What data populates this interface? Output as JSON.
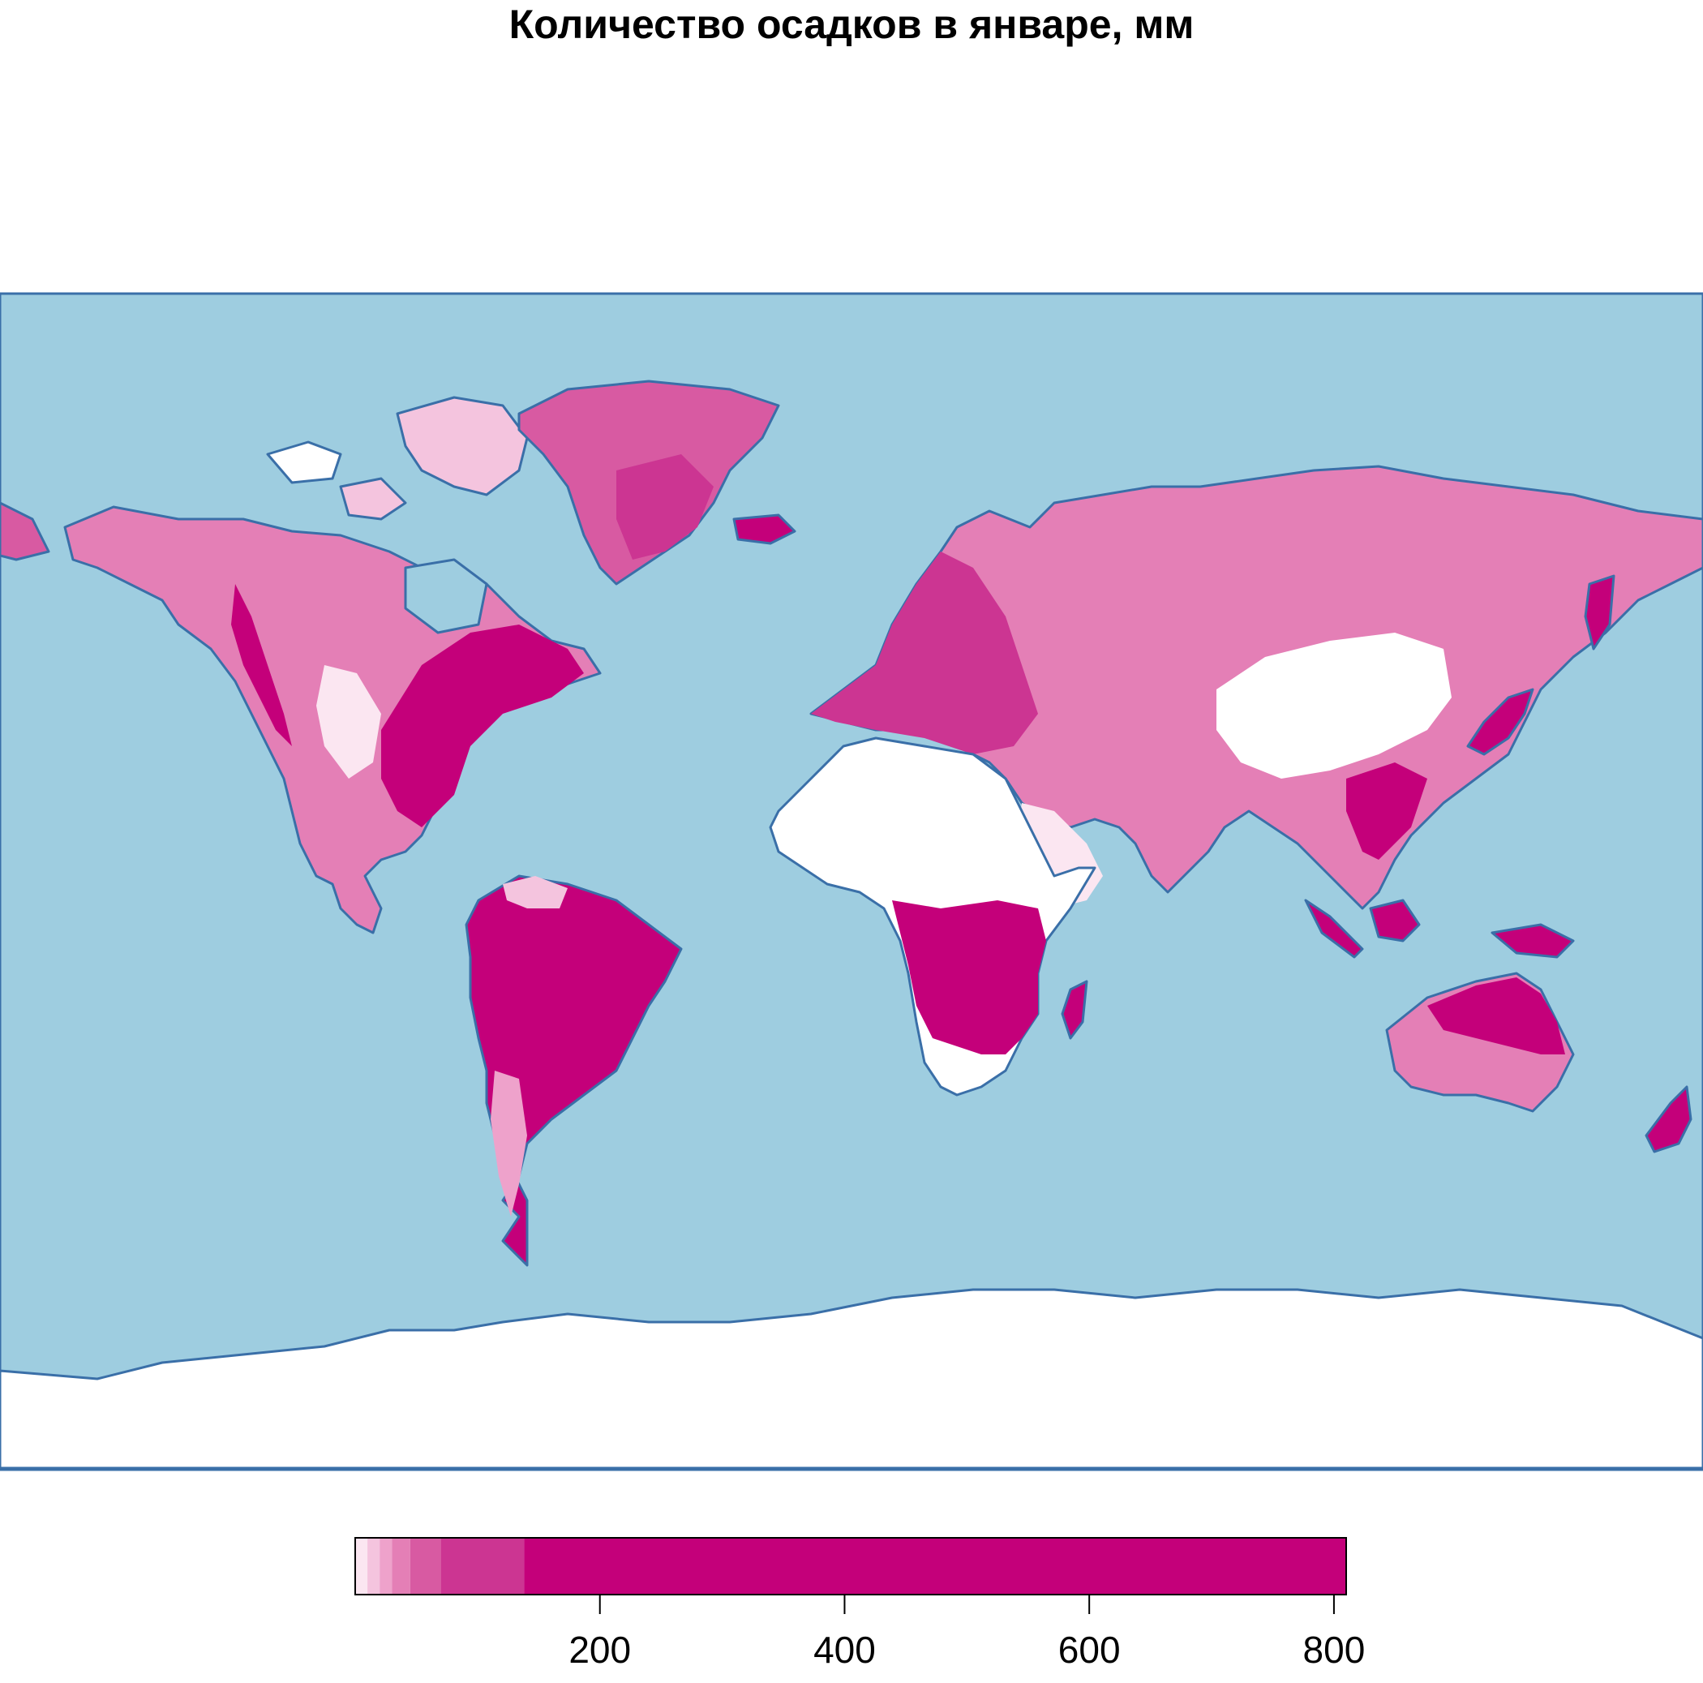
{
  "map": {
    "title": "Количество осадков в январе, мм",
    "ocean_color": "#9ecde0",
    "coast_color": "#3a6fa8"
  },
  "legend": {
    "ticks": [
      {
        "value": 200,
        "label": "200"
      },
      {
        "value": 400,
        "label": "400"
      },
      {
        "value": 600,
        "label": "600"
      },
      {
        "value": 800,
        "label": "800"
      }
    ],
    "range": [
      0,
      810
    ],
    "bins": [
      {
        "from": 0,
        "to": 10,
        "color": "#fbe6f1"
      },
      {
        "from": 10,
        "to": 20,
        "color": "#f4c4de"
      },
      {
        "from": 20,
        "to": 30,
        "color": "#eea2cb"
      },
      {
        "from": 30,
        "to": 45,
        "color": "#e47fb6"
      },
      {
        "from": 45,
        "to": 70,
        "color": "#d85aa2"
      },
      {
        "from": 70,
        "to": 138,
        "color": "#cc3592"
      },
      {
        "from": 138,
        "to": 810,
        "color": "#c4007a"
      }
    ]
  }
}
